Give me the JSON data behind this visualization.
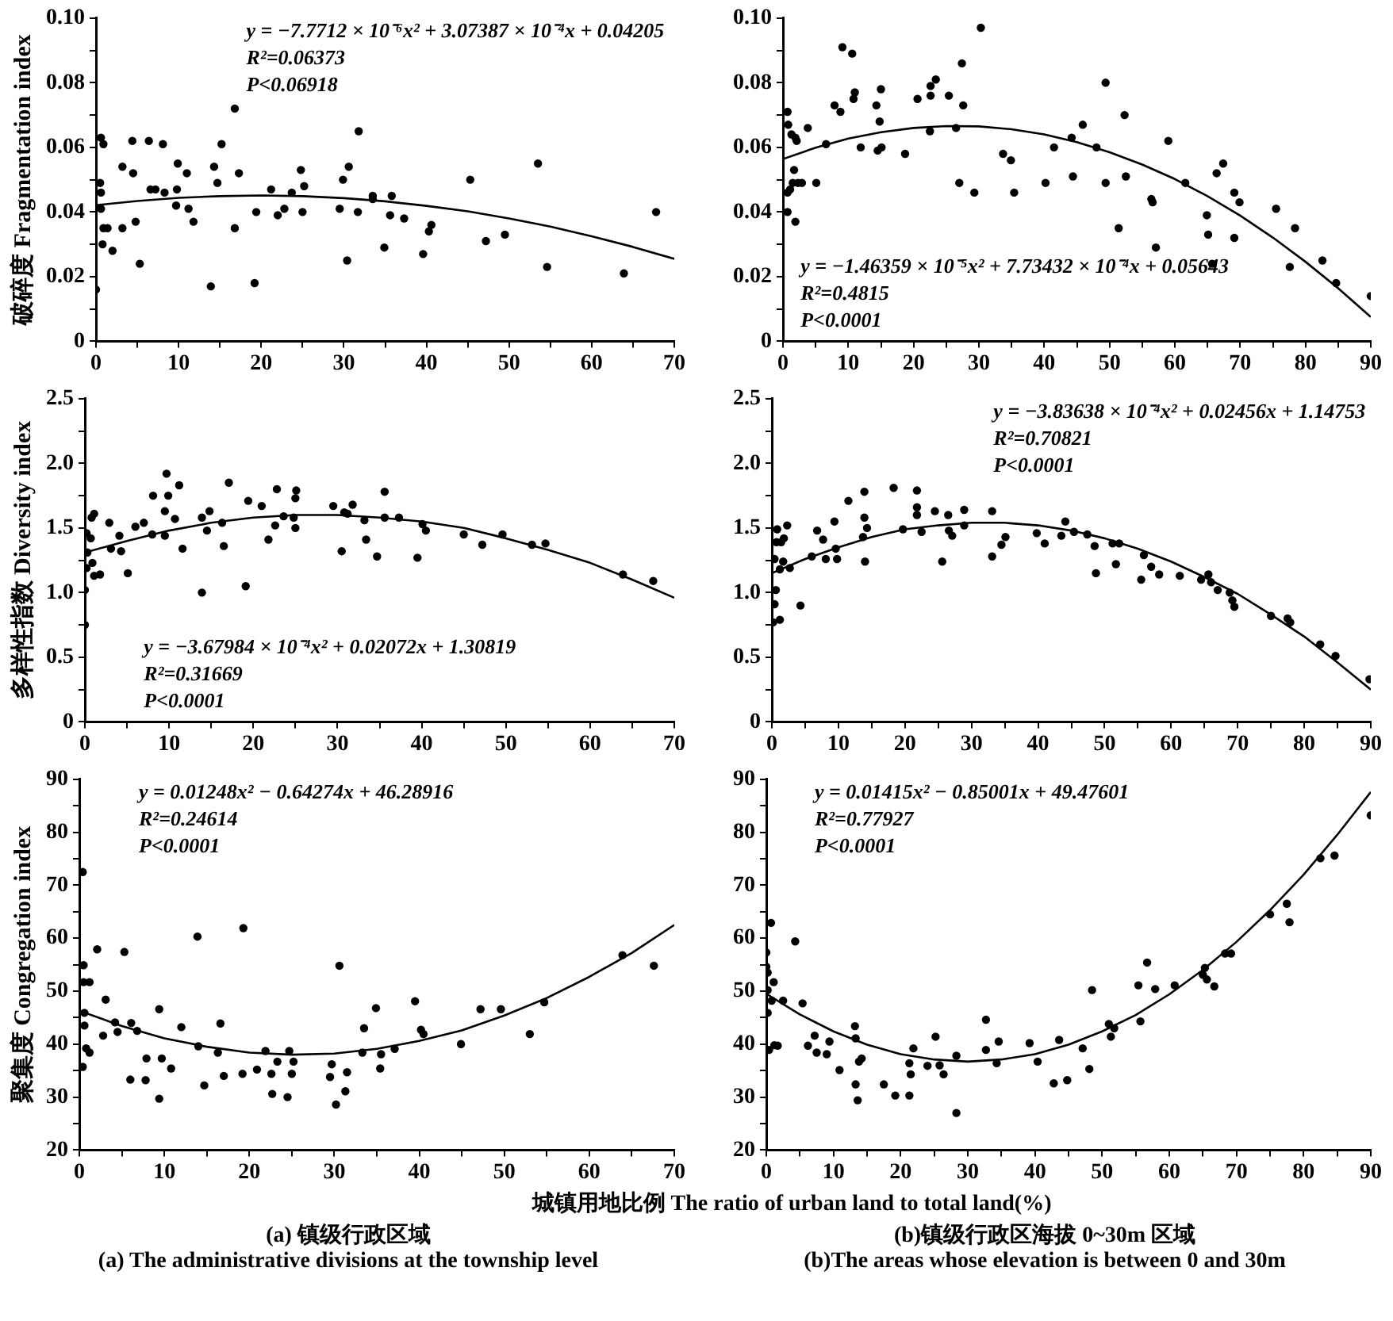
{
  "chart_data": [
    {
      "type": "scatter",
      "ylabel": "破碎度 Fragmentation index",
      "grid": false,
      "legend": false,
      "marker": "circle",
      "xlim": [
        0,
        70
      ],
      "ylim": [
        0,
        0.1
      ],
      "xticks": [
        0,
        {
          "value": 5,
          "label": null
        },
        10,
        {
          "value": 15,
          "label": null
        },
        20,
        {
          "value": 25,
          "label": null
        },
        30,
        {
          "value": 35,
          "label": null
        },
        40,
        {
          "value": 45,
          "label": null
        },
        50,
        {
          "value": 55,
          "label": null
        },
        60,
        {
          "value": 65,
          "label": null
        },
        70
      ],
      "yticks": [
        0,
        {
          "value": 0.01,
          "label": null
        },
        0.02,
        {
          "value": 0.03,
          "label": null
        },
        0.04,
        {
          "value": 0.05,
          "label": null
        },
        0.06,
        {
          "value": 0.07,
          "label": null
        },
        0.08,
        {
          "value": 0.09,
          "label": null
        },
        {
          "value": 0.1,
          "label": "0.10"
        }
      ],
      "annotations": [
        "y = −7.7712 × 10⁻⁶x² + 3.07387 × 10⁻⁴x + 0.04205",
        "R²=0.06373",
        "P<0.06918"
      ],
      "series": [
        {
          "type": "scatter",
          "color": "#000000",
          "x": [
            0,
            0.5,
            0.6,
            0.6,
            0.9,
            1.4,
            0.8,
            2,
            3.2,
            3.2,
            4.4,
            4.5,
            4.8,
            5.3,
            6.4,
            6.6,
            7.2,
            8.1,
            8.3,
            9.9,
            9.8,
            9.7,
            11,
            11.2,
            11.8,
            13.9,
            14.3,
            14.7,
            15.2,
            16.8,
            16.8,
            17.3,
            19.2,
            19.4,
            21.2,
            22,
            22.8,
            23.7,
            24.8,
            25.2,
            25,
            29.5,
            29.9,
            30.4,
            30.6,
            31.7,
            31.8,
            33.5,
            33.5,
            34.9,
            35.8,
            35.6,
            37.3,
            39.6,
            40.3,
            40.6,
            45.3,
            47.2,
            49.5,
            53.5,
            54.6,
            63.9,
            67.8,
            0.6,
            0.9
          ],
          "values": [
            0.016,
            0.049,
            0.046,
            0.041,
            0.035,
            0.035,
            0.03,
            0.028,
            0.035,
            0.054,
            0.062,
            0.052,
            0.037,
            0.024,
            0.062,
            0.047,
            0.047,
            0.061,
            0.046,
            0.055,
            0.047,
            0.042,
            0.052,
            0.041,
            0.037,
            0.017,
            0.054,
            0.049,
            0.061,
            0.035,
            0.072,
            0.052,
            0.018,
            0.04,
            0.047,
            0.039,
            0.041,
            0.046,
            0.053,
            0.048,
            0.04,
            0.041,
            0.05,
            0.025,
            0.054,
            0.04,
            0.065,
            0.045,
            0.044,
            0.029,
            0.045,
            0.039,
            0.038,
            0.027,
            0.034,
            0.036,
            0.05,
            0.031,
            0.033,
            0.055,
            0.023,
            0.021,
            0.04,
            0.063,
            0.061
          ]
        },
        {
          "type": "line",
          "color": "#000000",
          "marker": "none",
          "x": [
            0,
            5,
            10,
            15,
            20,
            25,
            30,
            35,
            40,
            45,
            50,
            55,
            60,
            65,
            70
          ],
          "values": [
            0.0421,
            0.0434,
            0.0444,
            0.0449,
            0.0451,
            0.0449,
            0.0443,
            0.0433,
            0.0419,
            0.0402,
            0.038,
            0.0355,
            0.0325,
            0.0292,
            0.0255
          ]
        }
      ]
    },
    {
      "type": "scatter",
      "grid": false,
      "legend": false,
      "marker": "circle",
      "xlim": [
        0,
        90
      ],
      "ylim": [
        0,
        0.1
      ],
      "xticks": [
        0,
        {
          "value": 5,
          "label": null
        },
        10,
        {
          "value": 15,
          "label": null
        },
        20,
        {
          "value": 25,
          "label": null
        },
        30,
        {
          "value": 35,
          "label": null
        },
        40,
        {
          "value": 45,
          "label": null
        },
        50,
        {
          "value": 55,
          "label": null
        },
        60,
        {
          "value": 65,
          "label": null
        },
        70,
        {
          "value": 75,
          "label": null
        },
        80,
        {
          "value": 85,
          "label": null
        },
        90
      ],
      "yticks": [
        0,
        {
          "value": 0.01,
          "label": null
        },
        0.02,
        {
          "value": 0.03,
          "label": null
        },
        0.04,
        {
          "value": 0.05,
          "label": null
        },
        0.06,
        {
          "value": 0.07,
          "label": null
        },
        0.08,
        {
          "value": 0.09,
          "label": null
        },
        {
          "value": 0.1,
          "label": "0.10"
        }
      ],
      "annotations": [
        "y = −1.46359 × 10⁻⁵x² + 7.73432 × 10⁻⁴x + 0.05643",
        "R²=0.4815",
        "P<0.0001"
      ],
      "series": [
        {
          "type": "scatter",
          "color": "#000000",
          "x": [
            0.7,
            0.8,
            1.3,
            1.9,
            2.1,
            1.7,
            1.5,
            2.3,
            2.9,
            0.7,
            1.1,
            0.7,
            1.9,
            3.8,
            5.1,
            6.6,
            7.9,
            8.8,
            9.1,
            10.6,
            10.8,
            11,
            11.9,
            14.3,
            14.8,
            14.5,
            15,
            15.1,
            18.7,
            20.6,
            22.6,
            22.6,
            23.4,
            22.5,
            25.4,
            26.5,
            27.4,
            27.6,
            27,
            29.3,
            30.3,
            33.7,
            34.9,
            35.4,
            40.2,
            41.5,
            44.2,
            44.4,
            45.9,
            48,
            49.4,
            49.4,
            52.3,
            52.5,
            51.4,
            56.4,
            56.6,
            57.1,
            59,
            61.6,
            64.9,
            65.1,
            65.7,
            66.4,
            67.4,
            69.1,
            69.9,
            69.1,
            75.5,
            78.4,
            77.6,
            82.6,
            84.7,
            90
          ],
          "values": [
            0.071,
            0.067,
            0.064,
            0.063,
            0.062,
            0.053,
            0.049,
            0.049,
            0.049,
            0.046,
            0.047,
            0.04,
            0.037,
            0.066,
            0.049,
            0.061,
            0.073,
            0.071,
            0.091,
            0.089,
            0.075,
            0.077,
            0.06,
            0.073,
            0.068,
            0.059,
            0.078,
            0.06,
            0.058,
            0.075,
            0.076,
            0.079,
            0.081,
            0.065,
            0.076,
            0.066,
            0.086,
            0.073,
            0.049,
            0.046,
            0.097,
            0.058,
            0.056,
            0.046,
            0.049,
            0.06,
            0.063,
            0.051,
            0.067,
            0.06,
            0.08,
            0.049,
            0.07,
            0.051,
            0.035,
            0.044,
            0.043,
            0.029,
            0.062,
            0.049,
            0.039,
            0.033,
            0.024,
            0.052,
            0.055,
            0.046,
            0.043,
            0.032,
            0.041,
            0.035,
            0.023,
            0.025,
            0.018,
            0.014
          ]
        },
        {
          "type": "line",
          "color": "#000000",
          "marker": "none",
          "x": [
            0,
            5,
            10,
            15,
            20,
            25,
            30,
            35,
            40,
            45,
            50,
            55,
            60,
            65,
            70,
            75,
            80,
            85,
            90
          ],
          "values": [
            0.0564,
            0.0599,
            0.0627,
            0.0647,
            0.066,
            0.0666,
            0.0665,
            0.0656,
            0.064,
            0.0616,
            0.0585,
            0.0547,
            0.0502,
            0.0449,
            0.0389,
            0.0321,
            0.0246,
            0.0164,
            0.0075
          ]
        }
      ]
    },
    {
      "type": "scatter",
      "ylabel": "多样性指数 Diversity index",
      "grid": false,
      "legend": false,
      "marker": "circle",
      "xlim": [
        0,
        70
      ],
      "ylim": [
        0,
        2.5
      ],
      "xticks": [
        0,
        {
          "value": 5,
          "label": null
        },
        10,
        {
          "value": 15,
          "label": null
        },
        20,
        {
          "value": 25,
          "label": null
        },
        30,
        {
          "value": 35,
          "label": null
        },
        40,
        {
          "value": 45,
          "label": null
        },
        50,
        {
          "value": 55,
          "label": null
        },
        60,
        {
          "value": 65,
          "label": null
        },
        70
      ],
      "yticks": [
        0,
        {
          "value": 0.25,
          "label": null
        },
        0.5,
        {
          "value": 0.75,
          "label": null
        },
        {
          "value": 1,
          "label": "1.0"
        },
        {
          "value": 1.25,
          "label": null
        },
        1.5,
        {
          "value": 1.75,
          "label": null
        },
        {
          "value": 2,
          "label": "2.0"
        },
        {
          "value": 2.25,
          "label": null
        },
        2.5
      ],
      "annotations": [
        "y = −3.67984 × 10⁻⁴x² + 0.02072x + 1.30819",
        "R²=0.31669",
        "P<0.0001"
      ],
      "series": [
        {
          "type": "scatter",
          "color": "#000000",
          "x": [
            0,
            0,
            0.2,
            0.3,
            0.2,
            0.7,
            0.8,
            1.1,
            0.9,
            1.1,
            1.8,
            2.9,
            3.1,
            4.1,
            4.3,
            5.1,
            6,
            7,
            8.1,
            8,
            9.5,
            9.7,
            9.9,
            9.5,
            10.7,
            11.2,
            11.6,
            13.9,
            13.9,
            14.5,
            14.8,
            16.5,
            16.3,
            17.1,
            19.1,
            19.4,
            21,
            21.8,
            22.8,
            22.6,
            23.6,
            24.8,
            25,
            25.1,
            25,
            29.5,
            30.5,
            30.8,
            31.2,
            31.8,
            33.2,
            33.4,
            34.7,
            35.6,
            35.6,
            37.3,
            39.5,
            40.1,
            40.5,
            45,
            47.2,
            49.6,
            53.1,
            54.7,
            63.9,
            67.5
          ],
          "values": [
            0.75,
            1.02,
            1.19,
            1.31,
            1.46,
            1.42,
            1.58,
            1.61,
            1.23,
            1.13,
            1.14,
            1.54,
            1.34,
            1.44,
            1.32,
            1.15,
            1.51,
            1.54,
            1.75,
            1.45,
            1.63,
            1.92,
            1.75,
            1.44,
            1.57,
            1.83,
            1.34,
            1,
            1.58,
            1.48,
            1.63,
            1.36,
            1.54,
            1.85,
            1.05,
            1.71,
            1.67,
            1.41,
            1.8,
            1.52,
            1.59,
            1.58,
            1.73,
            1.79,
            1.5,
            1.67,
            1.32,
            1.62,
            1.61,
            1.68,
            1.56,
            1.41,
            1.28,
            1.78,
            1.58,
            1.58,
            1.27,
            1.53,
            1.48,
            1.45,
            1.37,
            1.45,
            1.37,
            1.38,
            1.14,
            1.09
          ]
        },
        {
          "type": "line",
          "color": "#000000",
          "marker": "none",
          "x": [
            0,
            5,
            10,
            15,
            20,
            25,
            30,
            35,
            40,
            45,
            50,
            55,
            60,
            65,
            70
          ],
          "values": [
            1.31,
            1.4,
            1.48,
            1.54,
            1.58,
            1.6,
            1.6,
            1.58,
            1.55,
            1.5,
            1.42,
            1.33,
            1.23,
            1.1,
            0.96
          ]
        }
      ]
    },
    {
      "type": "scatter",
      "grid": false,
      "legend": false,
      "marker": "circle",
      "xlim": [
        0,
        90
      ],
      "ylim": [
        0,
        2.5
      ],
      "xticks": [
        0,
        {
          "value": 5,
          "label": null
        },
        10,
        {
          "value": 15,
          "label": null
        },
        20,
        {
          "value": 25,
          "label": null
        },
        30,
        {
          "value": 35,
          "label": null
        },
        40,
        {
          "value": 45,
          "label": null
        },
        50,
        {
          "value": 55,
          "label": null
        },
        60,
        {
          "value": 65,
          "label": null
        },
        70,
        {
          "value": 75,
          "label": null
        },
        80,
        {
          "value": 85,
          "label": null
        },
        90
      ],
      "yticks": [
        0,
        {
          "value": 0.25,
          "label": null
        },
        0.5,
        {
          "value": 0.75,
          "label": null
        },
        {
          "value": 1,
          "label": "1.0"
        },
        {
          "value": 1.25,
          "label": null
        },
        1.5,
        {
          "value": 1.75,
          "label": null
        },
        {
          "value": 2,
          "label": "2.0"
        },
        {
          "value": 2.25,
          "label": null
        },
        2.5
      ],
      "annotations": [
        "y = −3.83638 × 10⁻⁴x² + 0.02456x + 1.14753",
        "R²=0.70821",
        "P<0.0001"
      ],
      "series": [
        {
          "type": "scatter",
          "color": "#000000",
          "x": [
            0.2,
            0.4,
            0.6,
            0.4,
            0.7,
            0.8,
            1.2,
            1.4,
            1.7,
            1.2,
            1.8,
            2.3,
            2.7,
            4.3,
            6,
            6.8,
            7.7,
            8.1,
            9.4,
            9.6,
            9.8,
            11.5,
            13.9,
            13.9,
            13.7,
            14.3,
            14,
            18.3,
            19.7,
            21.8,
            21.8,
            21.8,
            22.5,
            24.5,
            25.6,
            26.5,
            26.6,
            27.1,
            28.9,
            28.9,
            33.1,
            33.1,
            34.5,
            35.1,
            39.8,
            41,
            43.5,
            44.1,
            45.4,
            47.4,
            48.5,
            48.7,
            51.2,
            51.7,
            52.2,
            55.5,
            55.9,
            57,
            58.2,
            61.3,
            64.5,
            65.6,
            66,
            67,
            68.8,
            69.2,
            69.5,
            75,
            77.5,
            77.9,
            82.4,
            84.7,
            89.8
          ],
          "values": [
            0.77,
            0.91,
            1.02,
            1.26,
            1.39,
            1.49,
            0.79,
            1.39,
            1.24,
            1.18,
            1.42,
            1.52,
            1.19,
            0.9,
            1.28,
            1.48,
            1.41,
            1.26,
            1.55,
            1.34,
            1.26,
            1.71,
            1.78,
            1.58,
            1.43,
            1.5,
            1.24,
            1.81,
            1.49,
            1.79,
            1.66,
            1.6,
            1.47,
            1.63,
            1.24,
            1.6,
            1.48,
            1.44,
            1.64,
            1.52,
            1.63,
            1.28,
            1.37,
            1.43,
            1.46,
            1.38,
            1.44,
            1.55,
            1.47,
            1.45,
            1.36,
            1.15,
            1.38,
            1.22,
            1.38,
            1.1,
            1.29,
            1.2,
            1.14,
            1.13,
            1.1,
            1.14,
            1.08,
            1.02,
            1,
            0.94,
            0.89,
            0.82,
            0.8,
            0.77,
            0.6,
            0.51,
            0.33
          ]
        },
        {
          "type": "line",
          "color": "#000000",
          "marker": "none",
          "x": [
            0,
            5,
            10,
            15,
            20,
            25,
            30,
            35,
            40,
            45,
            50,
            55,
            60,
            65,
            70,
            75,
            80,
            85,
            90
          ],
          "values": [
            1.15,
            1.26,
            1.35,
            1.43,
            1.49,
            1.52,
            1.54,
            1.54,
            1.52,
            1.48,
            1.42,
            1.34,
            1.24,
            1.12,
            0.99,
            0.83,
            0.66,
            0.46,
            0.25
          ]
        }
      ]
    },
    {
      "type": "scatter",
      "ylabel": "聚集度 Congregation index",
      "xlabel": "城镇用地比例  The ratio of urban land to total land(%)",
      "grid": false,
      "legend": false,
      "marker": "circle",
      "xlim": [
        0,
        70
      ],
      "ylim": [
        20,
        90
      ],
      "xticks": [
        0,
        {
          "value": 5,
          "label": null
        },
        10,
        {
          "value": 15,
          "label": null
        },
        20,
        {
          "value": 25,
          "label": null
        },
        30,
        {
          "value": 35,
          "label": null
        },
        40,
        {
          "value": 45,
          "label": null
        },
        50,
        {
          "value": 55,
          "label": null
        },
        60,
        {
          "value": 65,
          "label": null
        },
        70
      ],
      "yticks": [
        20,
        {
          "value": 25,
          "label": null
        },
        30,
        {
          "value": 35,
          "label": null
        },
        40,
        {
          "value": 45,
          "label": null
        },
        50,
        {
          "value": 55,
          "label": null
        },
        60,
        {
          "value": 65,
          "label": null
        },
        70,
        {
          "value": 75,
          "label": null
        },
        80,
        {
          "value": 85,
          "label": null
        },
        90
      ],
      "annotations": [
        "y = 0.01248x² − 0.64274x + 46.28916",
        "R²=0.24614",
        "P<0.0001",
        "(a) 镇级行政区域",
        "(a) The administrative divisions at the township level"
      ],
      "series": [
        {
          "type": "scatter",
          "color": "#000000",
          "x": [
            0.4,
            0.5,
            0.5,
            0.6,
            0.6,
            0.8,
            0.4,
            1.2,
            1.2,
            2.1,
            3.1,
            2.8,
            4.2,
            4.5,
            5.3,
            6.1,
            6,
            6.8,
            7.9,
            7.8,
            9.4,
            9.4,
            9.7,
            10.8,
            12,
            13.9,
            14,
            14.7,
            16.3,
            16.6,
            17,
            19.3,
            19.2,
            20.9,
            21.9,
            22.6,
            22.7,
            23.3,
            24.5,
            24.7,
            25,
            25.2,
            29.5,
            29.7,
            30.2,
            30.6,
            31.3,
            31.5,
            33.3,
            33.5,
            34.9,
            35.4,
            35.5,
            37.1,
            39.5,
            40.2,
            40.5,
            44.9,
            47.2,
            49.6,
            53,
            54.7,
            63.9,
            67.6
          ],
          "values": [
            72.5,
            54.9,
            51.7,
            45.9,
            43.5,
            39.2,
            35.7,
            51.7,
            38.4,
            57.9,
            48.4,
            41.6,
            44.1,
            42.3,
            57.4,
            44,
            33.3,
            42.5,
            37.3,
            33.2,
            46.6,
            29.7,
            37.3,
            35.4,
            43.2,
            60.3,
            39.6,
            32.2,
            38.4,
            43.9,
            34,
            61.9,
            34.4,
            35.2,
            38.7,
            34.4,
            30.6,
            36.7,
            30,
            38.7,
            34.4,
            36.7,
            33.8,
            36.2,
            28.6,
            54.8,
            31.1,
            34.7,
            38.4,
            43,
            46.8,
            35.4,
            38.1,
            39.1,
            48.1,
            42.7,
            41.9,
            40,
            46.6,
            46.6,
            41.9,
            47.9,
            56.8,
            54.8
          ]
        },
        {
          "type": "line",
          "color": "#000000",
          "marker": "none",
          "x": [
            0,
            5,
            10,
            15,
            20,
            25,
            30,
            35,
            40,
            45,
            50,
            55,
            60,
            65,
            70
          ],
          "values": [
            46.3,
            43.4,
            41.1,
            39.5,
            38.4,
            38,
            38.2,
            39.1,
            40.6,
            42.6,
            45.4,
            48.7,
            52.7,
            57.2,
            62.5
          ]
        }
      ]
    },
    {
      "type": "scatter",
      "grid": false,
      "legend": false,
      "marker": "circle",
      "xlim": [
        0,
        90
      ],
      "ylim": [
        20,
        90
      ],
      "xticks": [
        0,
        {
          "value": 5,
          "label": null
        },
        10,
        {
          "value": 15,
          "label": null
        },
        20,
        {
          "value": 25,
          "label": null
        },
        30,
        {
          "value": 35,
          "label": null
        },
        40,
        {
          "value": 45,
          "label": null
        },
        50,
        {
          "value": 55,
          "label": null
        },
        60,
        {
          "value": 65,
          "label": null
        },
        70,
        {
          "value": 75,
          "label": null
        },
        80,
        {
          "value": 85,
          "label": null
        },
        90
      ],
      "yticks": [
        20,
        {
          "value": 25,
          "label": null
        },
        30,
        {
          "value": 35,
          "label": null
        },
        40,
        {
          "value": 45,
          "label": null
        },
        50,
        {
          "value": 55,
          "label": null
        },
        60,
        {
          "value": 65,
          "label": null
        },
        70,
        {
          "value": 75,
          "label": null
        },
        80,
        {
          "value": 85,
          "label": null
        },
        90
      ],
      "annotations": [
        "y = 0.01415x² − 0.85001x + 49.47601",
        "R²=0.77927",
        "P<0.0001",
        "(b)镇级行政区海拔 0~30m 区域",
        "(b)The areas whose elevation is between 0 and 30m"
      ],
      "series": [
        {
          "type": "scatter",
          "color": "#000000",
          "x": [
            0,
            0,
            0.2,
            0.2,
            0.2,
            0.4,
            0.7,
            0.8,
            1.1,
            1.2,
            1.7,
            2.5,
            4.3,
            5.4,
            6.2,
            7.2,
            7.5,
            9,
            9.4,
            10.9,
            13.2,
            13.3,
            13.3,
            13.6,
            13.8,
            14.2,
            17.5,
            19.2,
            21.3,
            21.3,
            21.5,
            21.9,
            24,
            25.2,
            25.8,
            26.4,
            28.3,
            28.3,
            32.7,
            32.7,
            34.3,
            34.6,
            39.2,
            40.4,
            42.8,
            43.6,
            44.8,
            47.1,
            48.1,
            48.5,
            51,
            51.3,
            51.8,
            55.4,
            55.7,
            56.7,
            57.9,
            60.8,
            65,
            65.3,
            65.6,
            66.7,
            68.3,
            69.2,
            75,
            77.5,
            77.9,
            82.5,
            84.6,
            90
          ],
          "values": [
            54.6,
            57.3,
            53.5,
            50.2,
            45.9,
            38.9,
            62.9,
            48.2,
            51.7,
            39.8,
            39.7,
            48.2,
            59.4,
            47.7,
            39.7,
            41.6,
            38.4,
            38.1,
            40.5,
            35.1,
            43.4,
            41.1,
            32.4,
            29.4,
            36.7,
            37.3,
            32.4,
            30.3,
            30.3,
            36.4,
            34.3,
            39.2,
            35.9,
            41.4,
            36,
            34.3,
            37.8,
            27,
            44.6,
            38.9,
            36.4,
            40.5,
            40.2,
            36.7,
            32.6,
            40.8,
            33.2,
            39.2,
            35.3,
            50.2,
            43.8,
            41.4,
            43,
            51.1,
            44.3,
            55.4,
            50.4,
            51.1,
            53.1,
            54.4,
            52.2,
            50.9,
            57.1,
            57.1,
            64.5,
            66.5,
            63,
            75.1,
            75.6,
            83.2
          ]
        },
        {
          "type": "line",
          "color": "#000000",
          "marker": "none",
          "x": [
            0,
            5,
            10,
            15,
            20,
            25,
            30,
            35,
            40,
            45,
            50,
            55,
            60,
            65,
            70,
            75,
            80,
            85,
            90
          ],
          "values": [
            49.5,
            45.6,
            42.4,
            39.9,
            38.1,
            37.1,
            36.7,
            37.1,
            38.1,
            39.9,
            42.4,
            45.5,
            49.4,
            54,
            59.3,
            65.3,
            72,
            79.5,
            87.6
          ]
        }
      ]
    }
  ]
}
